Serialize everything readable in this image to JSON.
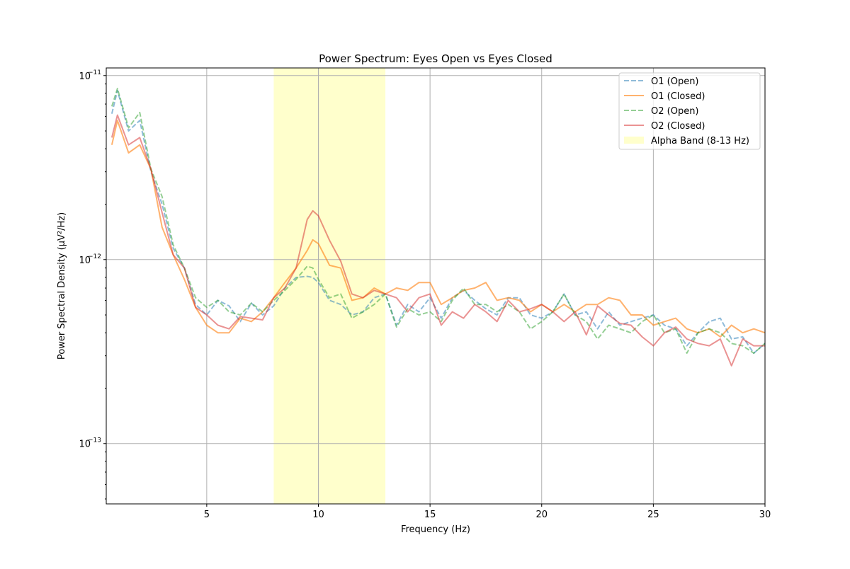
{
  "chart_data": {
    "type": "line",
    "title": "Power Spectrum: Eyes Open vs Eyes Closed",
    "xlabel": "Frequency (Hz)",
    "ylabel": "Power Spectral Density (µV²/Hz)",
    "xlim": [
      0.5,
      30
    ],
    "ylim": [
      4.7e-14,
      1.1e-11
    ],
    "yscale": "log",
    "grid": true,
    "legend_position": "top-right",
    "x_ticks": [
      5,
      10,
      15,
      20,
      25,
      30
    ],
    "x_tick_labels": [
      "5",
      "10",
      "15",
      "20",
      "25",
      "30"
    ],
    "y_ticks": [
      1e-11,
      1e-12,
      1e-13
    ],
    "y_tick_labels": [
      {
        "base": "10",
        "exp": "−11"
      },
      {
        "base": "10",
        "exp": "−12"
      },
      {
        "base": "10",
        "exp": "−13"
      }
    ],
    "shaded_band": {
      "label": "Alpha Band (8-13 Hz)",
      "x_start": 8,
      "x_end": 13,
      "color": "#ffff00"
    },
    "x": [
      0.75,
      1,
      1.5,
      2,
      2.5,
      3,
      3.5,
      4,
      4.5,
      5,
      5.5,
      6,
      6.5,
      7,
      7.5,
      8,
      8.5,
      9,
      9.5,
      9.75,
      10,
      10.5,
      11,
      11.5,
      12,
      12.5,
      13,
      13.5,
      14,
      14.5,
      15,
      15.5,
      16,
      16.5,
      17,
      17.5,
      18,
      18.5,
      19,
      19.5,
      20,
      20.5,
      21,
      21.5,
      22,
      22.5,
      23,
      23.5,
      24,
      24.5,
      25,
      25.5,
      26,
      26.5,
      27,
      27.5,
      28,
      28.5,
      29,
      29.5,
      30
    ],
    "series": [
      {
        "name": "O1 (Open)",
        "color": "#1f77b4",
        "dashed": true,
        "opacity": 0.5,
        "values": [
          6.2e-12,
          8.3e-12,
          5e-12,
          5.7e-12,
          3e-12,
          2e-12,
          1.15e-12,
          9e-13,
          5.7e-13,
          5e-13,
          6e-13,
          5.6e-13,
          4.6e-13,
          5.8e-13,
          5e-13,
          5.6e-13,
          7e-13,
          8e-13,
          8.1e-13,
          8e-13,
          7.5e-13,
          6e-13,
          5.7e-13,
          5e-13,
          5.2e-13,
          6.2e-13,
          6.5e-13,
          4.4e-13,
          5.7e-13,
          5.2e-13,
          6.2e-13,
          4.8e-13,
          6.2e-13,
          6.8e-13,
          6e-13,
          5.4e-13,
          5e-13,
          6.2e-13,
          6.2e-13,
          5e-13,
          4.8e-13,
          5.2e-13,
          6.5e-13,
          5e-13,
          5.2e-13,
          4.2e-13,
          5.2e-13,
          4.4e-13,
          4.6e-13,
          4.8e-13,
          5e-13,
          4.4e-13,
          4.2e-13,
          3.4e-13,
          4e-13,
          4.6e-13,
          4.8e-13,
          3.7e-13,
          3.8e-13,
          3.1e-13,
          3.5e-13
        ]
      },
      {
        "name": "O1 (Closed)",
        "color": "#ff7f0e",
        "dashed": false,
        "opacity": 0.6,
        "values": [
          4.2e-12,
          5.7e-12,
          3.8e-12,
          4.2e-12,
          3.1e-12,
          1.5e-12,
          1.06e-12,
          7.8e-13,
          5.5e-13,
          4.4e-13,
          4e-13,
          4e-13,
          4.8e-13,
          4.6e-13,
          5.2e-13,
          6.2e-13,
          7.5e-13,
          9e-13,
          1.12e-12,
          1.28e-12,
          1.22e-12,
          9.3e-13,
          9e-13,
          6e-13,
          6.2e-13,
          7e-13,
          6.5e-13,
          7e-13,
          6.8e-13,
          7.5e-13,
          7.5e-13,
          5.7e-13,
          6.2e-13,
          6.8e-13,
          7e-13,
          7.5e-13,
          6e-13,
          6.2e-13,
          6e-13,
          5.2e-13,
          5.7e-13,
          5.2e-13,
          5.7e-13,
          5.2e-13,
          5.7e-13,
          5.7e-13,
          6.2e-13,
          6e-13,
          5e-13,
          5e-13,
          4.4e-13,
          4.6e-13,
          4.8e-13,
          4.2e-13,
          4e-13,
          4.2e-13,
          3.8e-13,
          4.4e-13,
          4e-13,
          4.2e-13,
          4e-13
        ]
      },
      {
        "name": "O2 (Open)",
        "color": "#2ca02c",
        "dashed": true,
        "opacity": 0.5,
        "values": [
          6.8e-12,
          8.5e-12,
          5.2e-12,
          6.3e-12,
          3.1e-12,
          2.2e-12,
          1.2e-12,
          9e-13,
          6.2e-13,
          5.5e-13,
          6e-13,
          5.2e-13,
          5e-13,
          5.8e-13,
          5.2e-13,
          6e-13,
          6.8e-13,
          7.8e-13,
          9.2e-13,
          9e-13,
          7.8e-13,
          6.2e-13,
          6.5e-13,
          4.8e-13,
          5.2e-13,
          5.7e-13,
          6.5e-13,
          4.3e-13,
          5.4e-13,
          5e-13,
          5.2e-13,
          4.6e-13,
          6e-13,
          7e-13,
          5.7e-13,
          5.7e-13,
          5.2e-13,
          5.7e-13,
          5.2e-13,
          4.2e-13,
          4.6e-13,
          5.2e-13,
          6.5e-13,
          5e-13,
          4.6e-13,
          3.7e-13,
          4.4e-13,
          4.2e-13,
          4e-13,
          4.6e-13,
          5e-13,
          4e-13,
          4.2e-13,
          3.1e-13,
          4e-13,
          4.2e-13,
          4e-13,
          3.5e-13,
          3.4e-13,
          3.1e-13,
          3.5e-13
        ]
      },
      {
        "name": "O2 (Closed)",
        "color": "#d62728",
        "dashed": false,
        "opacity": 0.5,
        "values": [
          4.6e-12,
          6.1e-12,
          4.2e-12,
          4.6e-12,
          3.1e-12,
          1.8e-12,
          1.06e-12,
          9e-13,
          5.5e-13,
          5e-13,
          4.4e-13,
          4.2e-13,
          4.9e-13,
          4.8e-13,
          4.7e-13,
          6.2e-13,
          7e-13,
          9e-13,
          1.65e-12,
          1.84e-12,
          1.73e-12,
          1.27e-12,
          9.8e-13,
          6.5e-13,
          6.2e-13,
          6.8e-13,
          6.5e-13,
          6.2e-13,
          5.2e-13,
          6.2e-13,
          6.5e-13,
          4.4e-13,
          5.2e-13,
          4.8e-13,
          5.7e-13,
          5.2e-13,
          4.6e-13,
          6e-13,
          5.2e-13,
          5.4e-13,
          5.7e-13,
          5.2e-13,
          4.6e-13,
          5.2e-13,
          3.9e-13,
          5.6e-13,
          5e-13,
          4.5e-13,
          4.4e-13,
          3.8e-13,
          3.4e-13,
          4e-13,
          4.3e-13,
          3.7e-13,
          3.5e-13,
          3.4e-13,
          3.7e-13,
          2.65e-13,
          3.7e-13,
          3.4e-13,
          3.4e-13
        ]
      }
    ]
  }
}
